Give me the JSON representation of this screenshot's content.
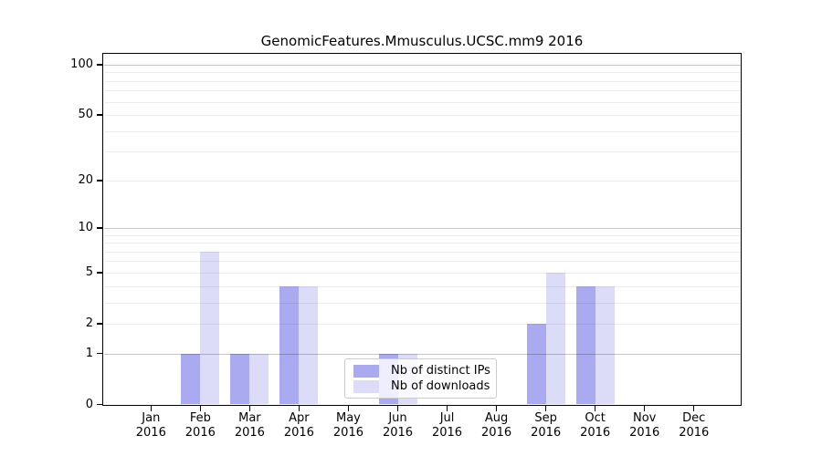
{
  "chart_data": {
    "type": "bar",
    "title": "GenomicFeatures.Mmusculus.UCSC.mm9 2016",
    "categories": [
      "Jan",
      "Feb",
      "Mar",
      "Apr",
      "May",
      "Jun",
      "Jul",
      "Aug",
      "Sep",
      "Oct",
      "Nov",
      "Dec"
    ],
    "x_year_label": "2016",
    "series": [
      {
        "name": "Nb of distinct IPs",
        "color": "#aaaaf0",
        "values": [
          0,
          1,
          1,
          4,
          0,
          1,
          0,
          0,
          2,
          4,
          0,
          0
        ]
      },
      {
        "name": "Nb of downloads",
        "color": "#dcdcf8",
        "values": [
          0,
          7,
          1,
          4,
          0,
          1,
          0,
          0,
          5,
          4,
          0,
          0
        ]
      }
    ],
    "y_ticks": [
      0,
      1,
      2,
      5,
      10,
      20,
      50,
      100
    ],
    "y_major_gridlines": [
      1,
      10,
      100
    ],
    "y_minor_gridlines": [
      2,
      3,
      4,
      5,
      6,
      7,
      8,
      9,
      20,
      30,
      40,
      50,
      60,
      70,
      80,
      90
    ],
    "y_scale": "log1p",
    "ylim": [
      0,
      116
    ],
    "xlabel": "",
    "ylabel": "",
    "grid": "horizontal",
    "legend_position": "lower-center"
  },
  "colors": {
    "axis": "#000000",
    "grid_major": "rgba(0,0,0,0.22)",
    "grid_minor": "rgba(0,0,0,0.07)",
    "legend_border": "#cccccc",
    "legend_background": "rgba(255,255,255,0.8)"
  }
}
